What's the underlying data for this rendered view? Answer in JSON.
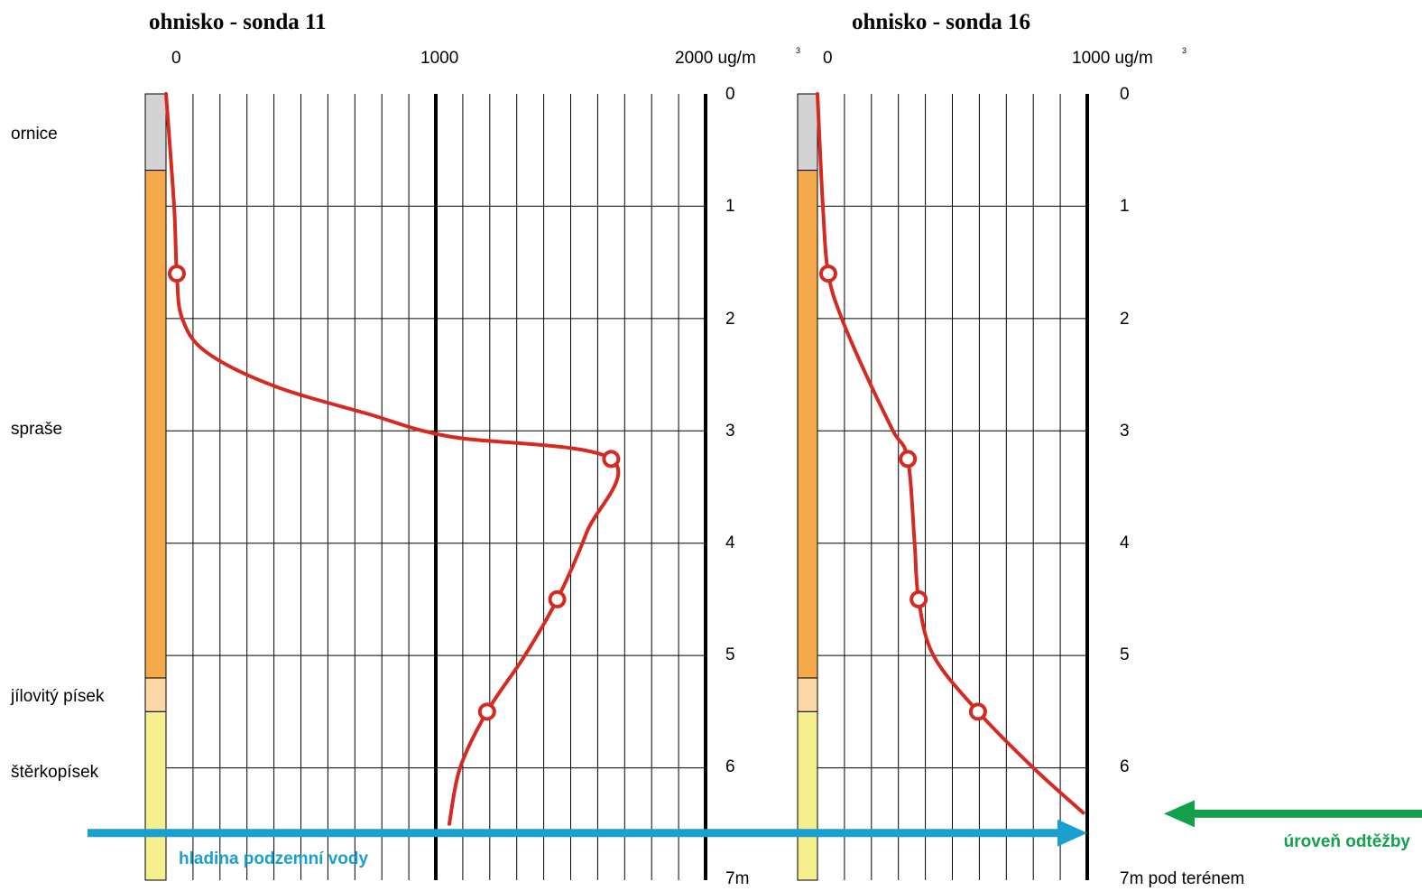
{
  "chart_data": [
    {
      "type": "line",
      "title": "ohnisko - sonda 11",
      "x_tick_labels": [
        "0",
        "1000",
        "2000 ug/m"
      ],
      "unit_superscript": "3",
      "xlim": [
        0,
        2000
      ],
      "ylim": [
        0,
        7
      ],
      "y_tick_labels": [
        "0",
        "1",
        "2",
        "3",
        "4",
        "5",
        "6",
        "7m"
      ],
      "points": [
        {
          "depth": 1.6,
          "value": 40
        },
        {
          "depth": 3.25,
          "value": 1650
        },
        {
          "depth": 4.5,
          "value": 1450
        },
        {
          "depth": 5.5,
          "value": 1190
        }
      ],
      "curve": [
        {
          "depth": 0,
          "value": 0
        },
        {
          "depth": 1,
          "value": 30
        },
        {
          "depth": 1.6,
          "value": 40
        },
        {
          "depth": 2.0,
          "value": 60
        },
        {
          "depth": 2.3,
          "value": 150
        },
        {
          "depth": 2.6,
          "value": 400
        },
        {
          "depth": 2.85,
          "value": 750
        },
        {
          "depth": 3.05,
          "value": 1050
        },
        {
          "depth": 3.25,
          "value": 1650
        },
        {
          "depth": 3.9,
          "value": 1560
        },
        {
          "depth": 4.5,
          "value": 1450
        },
        {
          "depth": 5.0,
          "value": 1330
        },
        {
          "depth": 5.5,
          "value": 1190
        },
        {
          "depth": 6.0,
          "value": 1090
        },
        {
          "depth": 6.5,
          "value": 1050
        }
      ]
    },
    {
      "type": "line",
      "title": "ohnisko - sonda 16",
      "x_tick_labels": [
        "0",
        "1000 ug/m"
      ],
      "unit_superscript": "3",
      "xlim": [
        0,
        1000
      ],
      "ylim": [
        0,
        7
      ],
      "y_tick_labels": [
        "0",
        "1",
        "2",
        "3",
        "4",
        "5",
        "6",
        "7m pod terénem"
      ],
      "points": [
        {
          "depth": 1.6,
          "value": 40
        },
        {
          "depth": 3.25,
          "value": 335
        },
        {
          "depth": 4.5,
          "value": 375
        },
        {
          "depth": 5.5,
          "value": 595
        }
      ],
      "curve": [
        {
          "depth": 0,
          "value": 0
        },
        {
          "depth": 1.0,
          "value": 20
        },
        {
          "depth": 1.6,
          "value": 40
        },
        {
          "depth": 2.0,
          "value": 90
        },
        {
          "depth": 2.5,
          "value": 180
        },
        {
          "depth": 3.0,
          "value": 280
        },
        {
          "depth": 3.25,
          "value": 335
        },
        {
          "depth": 4.0,
          "value": 360
        },
        {
          "depth": 4.5,
          "value": 375
        },
        {
          "depth": 5.0,
          "value": 430
        },
        {
          "depth": 5.5,
          "value": 595
        },
        {
          "depth": 6.0,
          "value": 800
        },
        {
          "depth": 6.4,
          "value": 985
        }
      ]
    }
  ],
  "soil_layers": [
    {
      "name": "ornice",
      "from": 0,
      "to": 0.68,
      "color": "#d3d3d3"
    },
    {
      "name": "spraše",
      "from": 0.68,
      "to": 5.2,
      "color": "#f4a94b"
    },
    {
      "name": "jílovitý písek",
      "from": 5.2,
      "to": 5.5,
      "color": "#fbd7a8"
    },
    {
      "name": "štěrkopísek",
      "from": 5.5,
      "to": 7.0,
      "color": "#f5ef8d"
    }
  ],
  "groundwater": {
    "label": "hladina podzemní vody",
    "depth": 6.58,
    "color": "#1a9fd1"
  },
  "excavation": {
    "label": "úroveň odtěžby",
    "depth": 6.4,
    "color": "#12a04a"
  },
  "line_color": "#d42a22"
}
